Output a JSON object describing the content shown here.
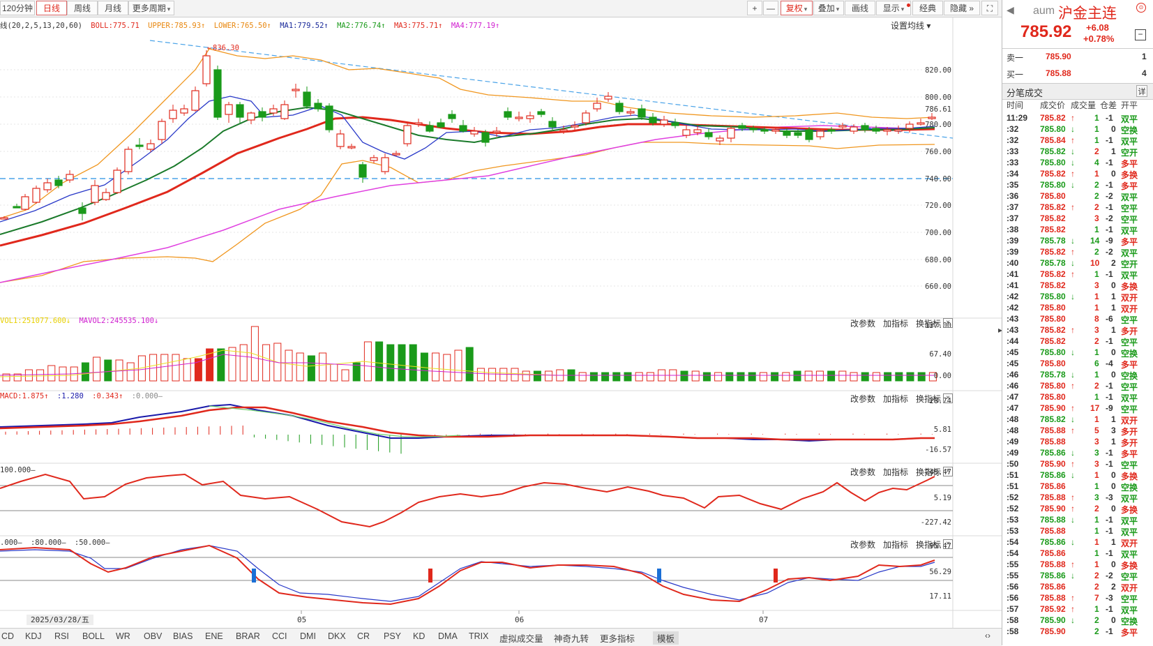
{
  "topbar": {
    "periods": [
      "120分钟",
      "日线",
      "周线",
      "月线",
      "更多周期"
    ],
    "tools": [
      "复权",
      "叠加",
      "画线",
      "显示",
      "经典",
      "隐藏"
    ],
    "zoom_in": "+",
    "zoom_out": "—"
  },
  "main_legend": {
    "prefix": "线(20,2,5,13,20,60)",
    "boll": "BOLL:775.71",
    "upper": "UPPER:785.93",
    "lower": "LOWER:765.50",
    "ma1": "MA1:779.52",
    "ma2": "MA2:776.74",
    "ma3": "MA3:775.71",
    "ma4": "MA4:777.19",
    "setting": "设置均线",
    "peak": "836.30"
  },
  "price_axis": [
    "820.00",
    "800.00",
    "786.61",
    "780.00",
    "760.00",
    "740.00",
    "720.00",
    "700.00",
    "680.00",
    "660.00"
  ],
  "vol_legend": {
    "vol": "VOL1:251077.600",
    "mavol": "MAVOL2:245535.100",
    "axis": [
      "137.00",
      "67.40",
      "0.00"
    ]
  },
  "macd_legend": {
    "macd": "MACD:1.875",
    "dif": ":1.280",
    "dea": ":0.343",
    "zero": ":0.000",
    "axis": [
      "28.74",
      "5.81",
      "-16.57"
    ]
  },
  "cci_legend": {
    "label": "100.000",
    "axis": [
      "243.47",
      "5.19",
      "-227.42"
    ]
  },
  "kd_legend": {
    "vals": [
      ".000",
      ":80.000",
      ":50.000"
    ],
    "axis": [
      "95.47",
      "56.29",
      "17.11"
    ]
  },
  "panel_buttons": [
    "改参数",
    "加指标",
    "换指标"
  ],
  "date_axis": {
    "start": "2025/03/28/五",
    "months": [
      "05",
      "06",
      "07"
    ]
  },
  "bottom_tabs": [
    "CD",
    "KDJ",
    "RSI",
    "BOLL",
    "WR",
    "OBV",
    "BIAS",
    "ENE",
    "BRAR",
    "CCI",
    "DMI",
    "DKX",
    "CR",
    "PSY",
    "KD",
    "DMA",
    "TRIX",
    "虚拟成交量",
    "神奇九转",
    "更多指标",
    "模板"
  ],
  "quote": {
    "code": "aum",
    "name": "沪金主连",
    "price": "785.92",
    "change": "+6.08",
    "pct": "+0.78%",
    "sell_label": "卖一",
    "sell_price": "785.90",
    "sell_vol": "1",
    "buy_label": "买一",
    "buy_price": "785.88",
    "buy_vol": "4",
    "ticks_title": "分笔成交",
    "detail": "详",
    "headers": [
      "时间",
      "成交价",
      "成交量",
      "仓差",
      "开平"
    ]
  },
  "ticks": [
    [
      "11:29",
      "785.82",
      "up",
      "1",
      "-1",
      "双平"
    ],
    [
      ":32",
      "785.80",
      "down",
      "1",
      "0",
      "空换"
    ],
    [
      ":32",
      "785.84",
      "up",
      "1",
      "-1",
      "双平"
    ],
    [
      ":33",
      "785.82",
      "down",
      "2",
      "1",
      "空开"
    ],
    [
      ":33",
      "785.80",
      "down",
      "4",
      "-1",
      "多平"
    ],
    [
      ":34",
      "785.82",
      "up",
      "1",
      "0",
      "多换"
    ],
    [
      ":35",
      "785.80",
      "down",
      "2",
      "-1",
      "多平"
    ],
    [
      ":36",
      "785.80",
      "",
      "2",
      "-2",
      "双平"
    ],
    [
      ":37",
      "785.82",
      "up",
      "2",
      "-1",
      "空平"
    ],
    [
      ":37",
      "785.82",
      "",
      "3",
      "-2",
      "空平"
    ],
    [
      ":38",
      "785.82",
      "",
      "1",
      "-1",
      "双平"
    ],
    [
      ":39",
      "785.78",
      "down",
      "14",
      "-9",
      "多平"
    ],
    [
      ":39",
      "785.82",
      "up",
      "2",
      "-2",
      "双平"
    ],
    [
      ":40",
      "785.78",
      "down",
      "10",
      "2",
      "空开"
    ],
    [
      ":41",
      "785.82",
      "up",
      "1",
      "-1",
      "双平"
    ],
    [
      ":41",
      "785.82",
      "",
      "3",
      "0",
      "多换"
    ],
    [
      ":42",
      "785.80",
      "down",
      "1",
      "1",
      "双开"
    ],
    [
      ":42",
      "785.80",
      "",
      "1",
      "1",
      "双开"
    ],
    [
      ":43",
      "785.80",
      "",
      "8",
      "-6",
      "空平"
    ],
    [
      ":43",
      "785.82",
      "up",
      "3",
      "1",
      "多开"
    ],
    [
      ":44",
      "785.82",
      "",
      "2",
      "-1",
      "空平"
    ],
    [
      ":45",
      "785.80",
      "down",
      "1",
      "0",
      "空换"
    ],
    [
      ":45",
      "785.80",
      "",
      "6",
      "-4",
      "多平"
    ],
    [
      ":46",
      "785.78",
      "down",
      "1",
      "0",
      "空换"
    ],
    [
      ":46",
      "785.80",
      "up",
      "2",
      "-1",
      "空平"
    ],
    [
      ":47",
      "785.80",
      "",
      "1",
      "-1",
      "双平"
    ],
    [
      ":47",
      "785.90",
      "up",
      "17",
      "-9",
      "空平"
    ],
    [
      ":48",
      "785.82",
      "down",
      "1",
      "1",
      "双开"
    ],
    [
      ":48",
      "785.88",
      "up",
      "5",
      "3",
      "多开"
    ],
    [
      ":49",
      "785.88",
      "",
      "3",
      "1",
      "多开"
    ],
    [
      ":49",
      "785.86",
      "down",
      "3",
      "-1",
      "多平"
    ],
    [
      ":50",
      "785.90",
      "up",
      "3",
      "-1",
      "空平"
    ],
    [
      ":51",
      "785.86",
      "down",
      "1",
      "0",
      "多换"
    ],
    [
      ":51",
      "785.86",
      "",
      "1",
      "0",
      "空换"
    ],
    [
      ":52",
      "785.88",
      "up",
      "3",
      "-3",
      "双平"
    ],
    [
      ":52",
      "785.90",
      "up",
      "2",
      "0",
      "多换"
    ],
    [
      ":53",
      "785.88",
      "down",
      "1",
      "-1",
      "双平"
    ],
    [
      ":53",
      "785.88",
      "",
      "1",
      "-1",
      "双平"
    ],
    [
      ":54",
      "785.86",
      "down",
      "1",
      "1",
      "双开"
    ],
    [
      ":54",
      "785.86",
      "",
      "1",
      "-1",
      "双平"
    ],
    [
      ":55",
      "785.88",
      "up",
      "1",
      "0",
      "多换"
    ],
    [
      ":55",
      "785.86",
      "down",
      "2",
      "-2",
      "空平"
    ],
    [
      ":56",
      "785.86",
      "",
      "2",
      "2",
      "双开"
    ],
    [
      ":56",
      "785.88",
      "up",
      "7",
      "-3",
      "空平"
    ],
    [
      ":57",
      "785.92",
      "up",
      "1",
      "-1",
      "双平"
    ],
    [
      ":58",
      "785.90",
      "down",
      "2",
      "0",
      "空换"
    ],
    [
      ":58",
      "785.90",
      "",
      "2",
      "-1",
      "多平"
    ]
  ],
  "colors": {
    "up": "#e0281c",
    "down": "#1a9a1a",
    "bg": "#ffffff"
  }
}
